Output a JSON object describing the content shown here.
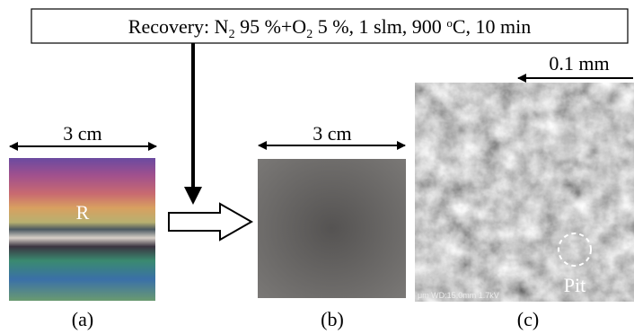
{
  "header": {
    "parts": [
      "Recovery: N",
      "2",
      " 95 %+O",
      "2",
      " 5 %, 1 slm, 900 ",
      "o",
      "C, 10 min"
    ]
  },
  "panels": [
    {
      "scale": "3 cm",
      "marker": "R",
      "caption": "(a)"
    },
    {
      "scale": "3 cm",
      "caption": "(b)"
    },
    {
      "scale": "0.1 mm",
      "marker": "Pit",
      "caption": "(c)",
      "footer": "μm WD:15.0mm 1.7kV"
    }
  ]
}
